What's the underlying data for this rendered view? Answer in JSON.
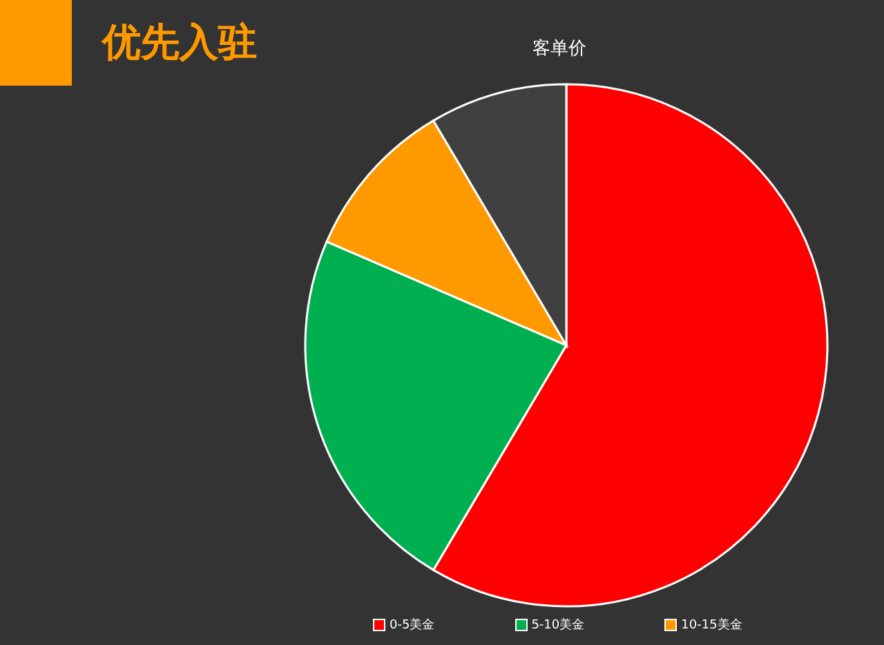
{
  "chart_data": {
    "type": "pie",
    "title": "优先入驻",
    "subtitle": "客单价",
    "categories": [
      "0-5美金",
      "5-10美金",
      "10-15美金",
      null
    ],
    "values": [
      58.5,
      23,
      10,
      8.5
    ],
    "colors": [
      "#ff0000",
      "#00b050",
      "#ff9900",
      "#404040"
    ],
    "legend": "bottom"
  }
}
